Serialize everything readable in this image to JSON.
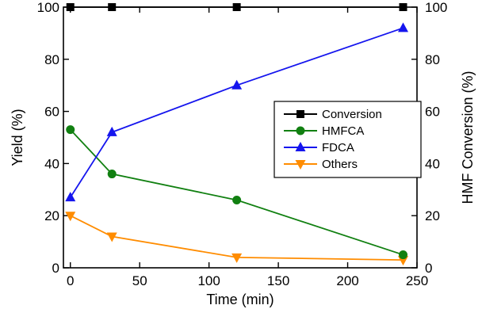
{
  "chart_data": {
    "type": "line",
    "xlabel": "Time (min)",
    "ylabel": "Yield (%)",
    "y2label": "HMF Conversion (%)",
    "xlim": [
      -5,
      250
    ],
    "ylim": [
      0,
      100
    ],
    "y2lim": [
      0,
      100
    ],
    "xticks": [
      0,
      50,
      100,
      150,
      200,
      250
    ],
    "yticks": [
      0,
      20,
      40,
      60,
      80,
      100
    ],
    "y2ticks": [
      0,
      20,
      40,
      60,
      80,
      100
    ],
    "x": [
      0,
      30,
      120,
      240
    ],
    "legend_position": "center-right",
    "series": [
      {
        "name": "Conversion",
        "color": "#000000",
        "marker": "square",
        "axis": "right",
        "values": [
          100,
          100,
          100,
          100
        ]
      },
      {
        "name": "HMFCA",
        "color": "#118011",
        "marker": "circle",
        "axis": "left",
        "values": [
          53,
          36,
          26,
          5
        ]
      },
      {
        "name": "FDCA",
        "color": "#1515ee",
        "marker": "triangle-up",
        "axis": "left",
        "values": [
          27,
          52,
          70,
          92
        ]
      },
      {
        "name": "Others",
        "color": "#ff8c00",
        "marker": "triangle-down",
        "axis": "left",
        "values": [
          20,
          12,
          4,
          3
        ]
      }
    ]
  }
}
